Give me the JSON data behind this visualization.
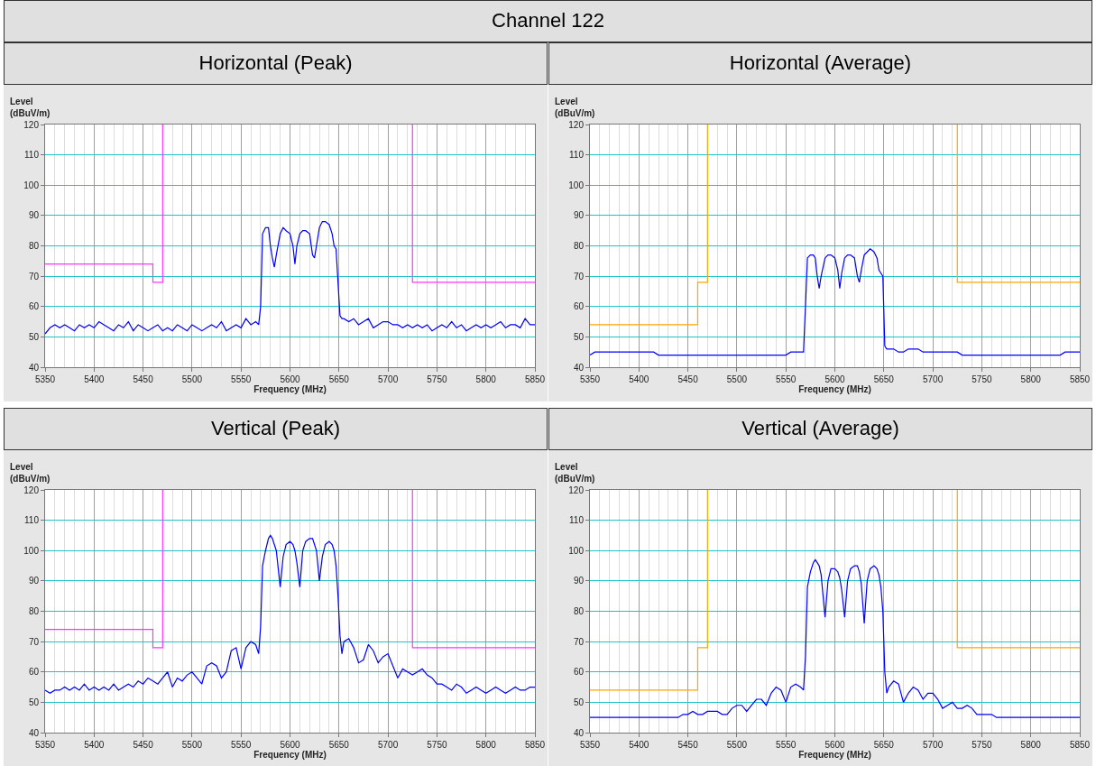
{
  "chart_data": [
    {
      "type": "other",
      "title": "Channel 122"
    },
    {
      "type": "line",
      "title": "Horizontal (Peak)",
      "xlabel": "Frequency (MHz)",
      "ylabel": "Level (dBuV/m)",
      "xlim": [
        5350,
        5850
      ],
      "xticks": [
        5350,
        5400,
        5450,
        5500,
        5550,
        5600,
        5650,
        5700,
        5750,
        5800,
        5850
      ],
      "ylim": [
        40,
        120
      ],
      "yticks": [
        40,
        50,
        60,
        70,
        80,
        90,
        100,
        110,
        120
      ],
      "grid": true,
      "x": [
        5350,
        5355,
        5360,
        5365,
        5370,
        5375,
        5380,
        5385,
        5390,
        5395,
        5400,
        5405,
        5410,
        5415,
        5420,
        5425,
        5430,
        5435,
        5440,
        5445,
        5450,
        5455,
        5460,
        5465,
        5470,
        5475,
        5480,
        5485,
        5490,
        5495,
        5500,
        5505,
        5510,
        5515,
        5520,
        5525,
        5530,
        5535,
        5540,
        5545,
        5550,
        5555,
        5560,
        5565,
        5568,
        5570,
        5572,
        5575,
        5578,
        5580,
        5582,
        5584,
        5586,
        5590,
        5593,
        5596,
        5600,
        5603,
        5605,
        5607,
        5610,
        5613,
        5616,
        5620,
        5623,
        5625,
        5627,
        5630,
        5633,
        5636,
        5640,
        5643,
        5645,
        5647,
        5649,
        5651,
        5653,
        5655,
        5660,
        5665,
        5670,
        5675,
        5680,
        5685,
        5690,
        5695,
        5700,
        5705,
        5710,
        5715,
        5720,
        5725,
        5730,
        5735,
        5740,
        5745,
        5750,
        5755,
        5760,
        5765,
        5770,
        5775,
        5780,
        5785,
        5790,
        5795,
        5800,
        5805,
        5810,
        5815,
        5820,
        5825,
        5830,
        5835,
        5840,
        5845,
        5850
      ],
      "series": [
        {
          "color": "#0000ff",
          "values": [
            51,
            53,
            54,
            53,
            54,
            53,
            52,
            54,
            53,
            54,
            53,
            55,
            54,
            53,
            52,
            54,
            53,
            55,
            52,
            54,
            53,
            52,
            53,
            54,
            52,
            53,
            52,
            54,
            53,
            52,
            54,
            53,
            52,
            53,
            54,
            53,
            55,
            52,
            53,
            54,
            53,
            56,
            54,
            55,
            54,
            60,
            84,
            86,
            86,
            80,
            76,
            73,
            77,
            84,
            86,
            85,
            84,
            80,
            74,
            80,
            84,
            85,
            85,
            84,
            77,
            76,
            80,
            86,
            88,
            88,
            87,
            84,
            80,
            79,
            68,
            57,
            56,
            56,
            55,
            56,
            54,
            55,
            56,
            53,
            54,
            55,
            55,
            54,
            54,
            53,
            54,
            53,
            54,
            53,
            54,
            52,
            53,
            54,
            53,
            55,
            53,
            54,
            52,
            53,
            54,
            53,
            54,
            53,
            54,
            55,
            53,
            54,
            54,
            53,
            56,
            54,
            54
          ]
        },
        {
          "color": "#ff33ff",
          "x": [
            5350,
            5460,
            5460,
            5470,
            5470,
            5600,
            5725,
            5725,
            5850
          ],
          "values": [
            74,
            74,
            68,
            68,
            120,
            null,
            120,
            68,
            68
          ]
        }
      ]
    },
    {
      "type": "line",
      "title": "Horizontal (Average)",
      "xlabel": "Frequency (MHz)",
      "ylabel": "Level (dBuV/m)",
      "xlim": [
        5350,
        5850
      ],
      "xticks": [
        5350,
        5400,
        5450,
        5500,
        5550,
        5600,
        5650,
        5700,
        5750,
        5800,
        5850
      ],
      "ylim": [
        40,
        120
      ],
      "yticks": [
        40,
        50,
        60,
        70,
        80,
        90,
        100,
        110,
        120
      ],
      "grid": true,
      "x": [
        5350,
        5355,
        5360,
        5365,
        5370,
        5375,
        5380,
        5385,
        5390,
        5395,
        5400,
        5405,
        5410,
        5415,
        5420,
        5425,
        5430,
        5435,
        5440,
        5445,
        5450,
        5455,
        5460,
        5465,
        5470,
        5475,
        5480,
        5485,
        5490,
        5495,
        5500,
        5505,
        5510,
        5515,
        5520,
        5525,
        5530,
        5535,
        5540,
        5545,
        5550,
        5555,
        5560,
        5565,
        5568,
        5570,
        5572,
        5575,
        5578,
        5580,
        5582,
        5584,
        5586,
        5590,
        5593,
        5596,
        5600,
        5603,
        5605,
        5607,
        5610,
        5613,
        5616,
        5620,
        5623,
        5625,
        5627,
        5630,
        5633,
        5636,
        5640,
        5643,
        5645,
        5647,
        5649,
        5651,
        5653,
        5655,
        5660,
        5665,
        5670,
        5675,
        5680,
        5685,
        5690,
        5695,
        5700,
        5705,
        5710,
        5715,
        5720,
        5725,
        5730,
        5735,
        5740,
        5745,
        5750,
        5755,
        5760,
        5765,
        5770,
        5775,
        5780,
        5785,
        5790,
        5795,
        5800,
        5805,
        5810,
        5815,
        5820,
        5825,
        5830,
        5835,
        5840,
        5845,
        5850
      ],
      "series": [
        {
          "color": "#0000ff",
          "values": [
            44,
            45,
            45,
            45,
            45,
            45,
            45,
            45,
            45,
            45,
            45,
            45,
            45,
            45,
            44,
            44,
            44,
            44,
            44,
            44,
            44,
            44,
            44,
            44,
            44,
            44,
            44,
            44,
            44,
            44,
            44,
            44,
            44,
            44,
            44,
            44,
            44,
            44,
            44,
            44,
            44,
            45,
            45,
            45,
            45,
            60,
            76,
            77,
            77,
            76,
            70,
            66,
            70,
            76,
            77,
            77,
            76,
            72,
            66,
            71,
            76,
            77,
            77,
            76,
            70,
            68,
            72,
            77,
            78,
            79,
            78,
            76,
            72,
            71,
            70,
            47,
            46,
            46,
            46,
            45,
            45,
            46,
            46,
            46,
            45,
            45,
            45,
            45,
            45,
            45,
            45,
            45,
            44,
            44,
            44,
            44,
            44,
            44,
            44,
            44,
            44,
            44,
            44,
            44,
            44,
            44,
            44,
            44,
            44,
            44,
            44,
            44,
            44,
            45,
            45,
            45,
            45
          ]
        },
        {
          "color": "#ffa500",
          "x": [
            5350,
            5460,
            5460,
            5470,
            5470,
            5600,
            5725,
            5725,
            5850
          ],
          "values": [
            54,
            54,
            68,
            68,
            120,
            null,
            120,
            68,
            68
          ]
        }
      ]
    },
    {
      "type": "line",
      "title": "Vertical (Peak)",
      "xlabel": "Frequency (MHz)",
      "ylabel": "Level (dBuV/m)",
      "xlim": [
        5350,
        5850
      ],
      "xticks": [
        5350,
        5400,
        5450,
        5500,
        5550,
        5600,
        5650,
        5700,
        5750,
        5800,
        5850
      ],
      "ylim": [
        40,
        120
      ],
      "yticks": [
        40,
        50,
        60,
        70,
        80,
        90,
        100,
        110,
        120
      ],
      "grid": true,
      "x": [
        5350,
        5355,
        5360,
        5365,
        5370,
        5375,
        5380,
        5385,
        5390,
        5395,
        5400,
        5405,
        5410,
        5415,
        5420,
        5425,
        5430,
        5435,
        5440,
        5445,
        5450,
        5455,
        5460,
        5465,
        5470,
        5475,
        5480,
        5485,
        5490,
        5495,
        5500,
        5505,
        5510,
        5515,
        5520,
        5525,
        5530,
        5535,
        5540,
        5545,
        5550,
        5555,
        5560,
        5565,
        5568,
        5570,
        5572,
        5575,
        5578,
        5580,
        5582,
        5584,
        5586,
        5590,
        5593,
        5596,
        5600,
        5603,
        5605,
        5607,
        5610,
        5613,
        5616,
        5620,
        5623,
        5625,
        5627,
        5630,
        5633,
        5636,
        5640,
        5643,
        5645,
        5647,
        5649,
        5651,
        5653,
        5655,
        5660,
        5665,
        5670,
        5675,
        5680,
        5685,
        5690,
        5695,
        5700,
        5705,
        5710,
        5715,
        5720,
        5725,
        5730,
        5735,
        5740,
        5745,
        5750,
        5755,
        5760,
        5765,
        5770,
        5775,
        5780,
        5785,
        5790,
        5795,
        5800,
        5805,
        5810,
        5815,
        5820,
        5825,
        5830,
        5835,
        5840,
        5845,
        5850
      ],
      "series": [
        {
          "color": "#0000ff",
          "values": [
            54,
            53,
            54,
            54,
            55,
            54,
            55,
            54,
            56,
            54,
            55,
            54,
            55,
            54,
            56,
            54,
            55,
            56,
            55,
            57,
            56,
            58,
            57,
            56,
            58,
            60,
            55,
            58,
            57,
            59,
            60,
            58,
            56,
            62,
            63,
            62,
            58,
            60,
            67,
            68,
            61,
            68,
            70,
            69,
            66,
            75,
            95,
            100,
            104,
            105,
            104,
            102,
            100,
            88,
            98,
            102,
            103,
            102,
            100,
            96,
            88,
            100,
            103,
            104,
            104,
            102,
            100,
            90,
            98,
            102,
            103,
            102,
            100,
            95,
            85,
            72,
            66,
            70,
            71,
            68,
            63,
            64,
            69,
            67,
            63,
            65,
            66,
            62,
            58,
            61,
            60,
            59,
            60,
            61,
            59,
            58,
            56,
            56,
            55,
            54,
            56,
            55,
            53,
            54,
            55,
            54,
            53,
            54,
            55,
            54,
            53,
            54,
            55,
            54,
            54,
            55,
            55
          ]
        },
        {
          "color": "#ff33ff",
          "x": [
            5350,
            5460,
            5460,
            5470,
            5470,
            5600,
            5725,
            5725,
            5850
          ],
          "values": [
            74,
            74,
            68,
            68,
            120,
            null,
            120,
            68,
            68
          ]
        }
      ]
    },
    {
      "type": "line",
      "title": "Vertical (Average)",
      "xlabel": "Frequency (MHz)",
      "ylabel": "Level (dBuV/m)",
      "xlim": [
        5350,
        5850
      ],
      "xticks": [
        5350,
        5400,
        5450,
        5500,
        5550,
        5600,
        5650,
        5700,
        5750,
        5800,
        5850
      ],
      "ylim": [
        40,
        120
      ],
      "yticks": [
        40,
        50,
        60,
        70,
        80,
        90,
        100,
        110,
        120
      ],
      "grid": true,
      "x": [
        5350,
        5355,
        5360,
        5365,
        5370,
        5375,
        5380,
        5385,
        5390,
        5395,
        5400,
        5405,
        5410,
        5415,
        5420,
        5425,
        5430,
        5435,
        5440,
        5445,
        5450,
        5455,
        5460,
        5465,
        5470,
        5475,
        5480,
        5485,
        5490,
        5495,
        5500,
        5505,
        5510,
        5515,
        5520,
        5525,
        5530,
        5535,
        5540,
        5545,
        5550,
        5555,
        5560,
        5565,
        5568,
        5570,
        5572,
        5575,
        5578,
        5580,
        5582,
        5584,
        5586,
        5590,
        5593,
        5596,
        5600,
        5603,
        5605,
        5607,
        5610,
        5613,
        5616,
        5620,
        5623,
        5625,
        5627,
        5630,
        5633,
        5636,
        5640,
        5643,
        5645,
        5647,
        5649,
        5651,
        5653,
        5655,
        5660,
        5665,
        5670,
        5675,
        5680,
        5685,
        5690,
        5695,
        5700,
        5705,
        5710,
        5715,
        5720,
        5725,
        5730,
        5735,
        5740,
        5745,
        5750,
        5755,
        5760,
        5765,
        5770,
        5775,
        5780,
        5785,
        5790,
        5795,
        5800,
        5805,
        5810,
        5815,
        5820,
        5825,
        5830,
        5835,
        5840,
        5845,
        5850
      ],
      "series": [
        {
          "color": "#0000ff",
          "values": [
            45,
            45,
            45,
            45,
            45,
            45,
            45,
            45,
            45,
            45,
            45,
            45,
            45,
            45,
            45,
            45,
            45,
            45,
            45,
            46,
            46,
            47,
            46,
            46,
            47,
            47,
            47,
            46,
            46,
            48,
            49,
            49,
            47,
            49,
            51,
            51,
            49,
            53,
            55,
            54,
            50,
            55,
            56,
            55,
            54,
            65,
            88,
            93,
            96,
            97,
            96,
            95,
            92,
            78,
            90,
            94,
            94,
            93,
            91,
            87,
            78,
            90,
            94,
            95,
            95,
            93,
            89,
            76,
            90,
            94,
            95,
            94,
            92,
            88,
            80,
            60,
            53,
            55,
            57,
            56,
            50,
            53,
            55,
            54,
            51,
            53,
            53,
            51,
            48,
            49,
            50,
            48,
            48,
            49,
            48,
            46,
            46,
            46,
            46,
            45,
            45,
            45,
            45,
            45,
            45,
            45,
            45,
            45,
            45,
            45,
            45,
            45,
            45,
            45,
            45,
            45,
            45
          ]
        },
        {
          "color": "#ffa500",
          "x": [
            5350,
            5460,
            5460,
            5470,
            5470,
            5600,
            5725,
            5725,
            5850
          ],
          "values": [
            54,
            54,
            68,
            68,
            120,
            null,
            120,
            68,
            68
          ]
        }
      ]
    }
  ]
}
